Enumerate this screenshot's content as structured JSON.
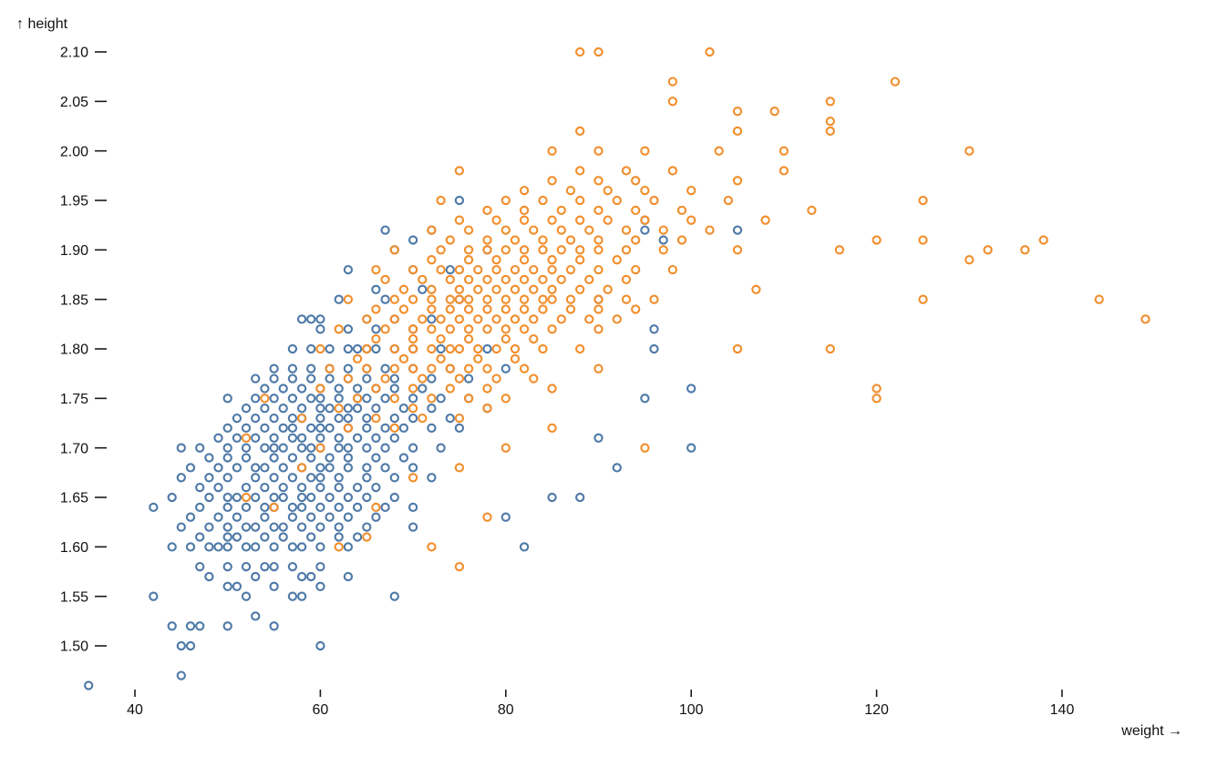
{
  "chart_data": {
    "type": "scatter",
    "title": "",
    "xlabel": "weight",
    "ylabel": "height",
    "x_axis_title": "weight →",
    "y_axis_title": "↑ height",
    "x_domain": [
      35,
      150
    ],
    "y_domain": [
      1.46,
      2.1
    ],
    "x_ticks": [
      40,
      60,
      80,
      100,
      120,
      140
    ],
    "y_ticks": [
      "1.50",
      "1.55",
      "1.60",
      "1.65",
      "1.70",
      "1.75",
      "1.80",
      "1.85",
      "1.90",
      "1.95",
      "2.00",
      "2.05",
      "2.10"
    ],
    "grid": false,
    "legend_position": "none",
    "background_color": "#ffffff",
    "text_color": "#111111",
    "marker": {
      "shape": "open-circle",
      "radius": 4.1,
      "stroke_width": 2.1
    },
    "series": [
      {
        "name": "blue",
        "color": "#4e79a7",
        "rows": [
          {
            "h": 1.46,
            "w": [
              35
            ]
          },
          {
            "h": 1.47,
            "w": [
              45
            ]
          },
          {
            "h": 1.5,
            "w": [
              45,
              46,
              60
            ]
          },
          {
            "h": 1.52,
            "w": [
              44,
              46,
              47,
              50,
              55
            ]
          },
          {
            "h": 1.53,
            "w": [
              53
            ]
          },
          {
            "h": 1.55,
            "w": [
              42,
              52,
              57,
              58,
              68
            ]
          },
          {
            "h": 1.56,
            "w": [
              50,
              51,
              55,
              60
            ]
          },
          {
            "h": 1.57,
            "w": [
              48,
              53,
              58,
              59,
              63
            ]
          },
          {
            "h": 1.58,
            "w": [
              47,
              50,
              52,
              54,
              55,
              57,
              60
            ]
          },
          {
            "h": 1.6,
            "w": [
              44,
              46,
              48,
              49,
              50,
              52,
              53,
              55,
              57,
              58,
              60,
              63,
              82
            ]
          },
          {
            "h": 1.61,
            "w": [
              47,
              50,
              51,
              54,
              56,
              59,
              62,
              64
            ]
          },
          {
            "h": 1.62,
            "w": [
              45,
              48,
              50,
              52,
              53,
              55,
              56,
              58,
              60,
              62,
              65,
              70
            ]
          },
          {
            "h": 1.63,
            "w": [
              46,
              49,
              51,
              54,
              57,
              59,
              61,
              63,
              66,
              80
            ]
          },
          {
            "h": 1.64,
            "w": [
              42,
              47,
              50,
              52,
              54,
              55,
              57,
              58,
              60,
              62,
              64,
              67,
              70
            ]
          },
          {
            "h": 1.65,
            "w": [
              44,
              48,
              50,
              51,
              53,
              55,
              56,
              58,
              59,
              61,
              63,
              65,
              68,
              85,
              88
            ]
          },
          {
            "h": 1.66,
            "w": [
              47,
              49,
              52,
              54,
              56,
              58,
              60,
              62,
              64,
              66
            ]
          },
          {
            "h": 1.67,
            "w": [
              45,
              48,
              50,
              53,
              55,
              57,
              59,
              60,
              62,
              65,
              68,
              72
            ]
          },
          {
            "h": 1.68,
            "w": [
              46,
              49,
              51,
              53,
              54,
              56,
              58,
              60,
              61,
              63,
              65,
              67,
              70,
              92
            ]
          },
          {
            "h": 1.69,
            "w": [
              48,
              50,
              52,
              55,
              57,
              59,
              61,
              63,
              66,
              69
            ]
          },
          {
            "h": 1.7,
            "w": [
              45,
              47,
              50,
              52,
              54,
              55,
              56,
              58,
              59,
              60,
              62,
              63,
              65,
              67,
              70,
              73,
              100
            ]
          },
          {
            "h": 1.71,
            "w": [
              49,
              51,
              53,
              55,
              57,
              58,
              60,
              62,
              64,
              66,
              68,
              90
            ]
          },
          {
            "h": 1.72,
            "w": [
              50,
              52,
              54,
              56,
              57,
              59,
              60,
              61,
              63,
              65,
              67,
              69,
              72,
              75
            ]
          },
          {
            "h": 1.73,
            "w": [
              51,
              53,
              55,
              57,
              58,
              60,
              62,
              63,
              65,
              68,
              70,
              74
            ]
          },
          {
            "h": 1.74,
            "w": [
              52,
              54,
              56,
              58,
              60,
              61,
              63,
              64,
              66,
              69,
              72,
              78
            ]
          },
          {
            "h": 1.75,
            "w": [
              50,
              53,
              55,
              57,
              59,
              60,
              62,
              64,
              65,
              67,
              70,
              73,
              76,
              95
            ]
          },
          {
            "h": 1.76,
            "w": [
              54,
              56,
              58,
              60,
              62,
              64,
              66,
              68,
              71,
              100
            ]
          },
          {
            "h": 1.77,
            "w": [
              53,
              55,
              57,
              59,
              61,
              63,
              65,
              68,
              72,
              76
            ]
          },
          {
            "h": 1.78,
            "w": [
              55,
              57,
              59,
              61,
              63,
              65,
              67,
              70,
              74,
              80
            ]
          },
          {
            "h": 1.8,
            "w": [
              57,
              59,
              61,
              63,
              64,
              65,
              66,
              68,
              70,
              73,
              78,
              96
            ]
          },
          {
            "h": 1.82,
            "w": [
              60,
              63,
              66,
              70,
              96
            ]
          },
          {
            "h": 1.83,
            "w": [
              58,
              59,
              60,
              65,
              68,
              72
            ]
          },
          {
            "h": 1.85,
            "w": [
              62,
              67,
              75,
              90
            ]
          },
          {
            "h": 1.86,
            "w": [
              66,
              71
            ]
          },
          {
            "h": 1.88,
            "w": [
              63,
              70,
              74
            ]
          },
          {
            "h": 1.9,
            "w": [
              68,
              78
            ]
          },
          {
            "h": 1.91,
            "w": [
              70,
              97
            ]
          },
          {
            "h": 1.92,
            "w": [
              67,
              72,
              95,
              105
            ]
          },
          {
            "h": 1.93,
            "w": [
              95
            ]
          },
          {
            "h": 1.95,
            "w": [
              75
            ]
          }
        ]
      },
      {
        "name": "orange",
        "color": "#f28e2c",
        "rows": [
          {
            "h": 1.58,
            "w": [
              75
            ]
          },
          {
            "h": 1.6,
            "w": [
              62,
              72
            ]
          },
          {
            "h": 1.61,
            "w": [
              65
            ]
          },
          {
            "h": 1.63,
            "w": [
              78
            ]
          },
          {
            "h": 1.64,
            "w": [
              55,
              66
            ]
          },
          {
            "h": 1.65,
            "w": [
              52
            ]
          },
          {
            "h": 1.67,
            "w": [
              70
            ]
          },
          {
            "h": 1.68,
            "w": [
              58,
              75
            ]
          },
          {
            "h": 1.7,
            "w": [
              60,
              80,
              95
            ]
          },
          {
            "h": 1.71,
            "w": [
              52
            ]
          },
          {
            "h": 1.72,
            "w": [
              63,
              68,
              85
            ]
          },
          {
            "h": 1.73,
            "w": [
              58,
              66,
              71,
              75
            ]
          },
          {
            "h": 1.74,
            "w": [
              62,
              70,
              78
            ]
          },
          {
            "h": 1.75,
            "w": [
              54,
              64,
              68,
              72,
              76,
              80,
              120
            ]
          },
          {
            "h": 1.76,
            "w": [
              60,
              66,
              70,
              74,
              78,
              85,
              120
            ]
          },
          {
            "h": 1.77,
            "w": [
              63,
              67,
              71,
              75,
              79,
              83
            ]
          },
          {
            "h": 1.78,
            "w": [
              61,
              65,
              68,
              70,
              72,
              74,
              76,
              78,
              82,
              90
            ]
          },
          {
            "h": 1.79,
            "w": [
              64,
              69,
              73,
              77,
              81
            ]
          },
          {
            "h": 1.8,
            "w": [
              60,
              65,
              68,
              70,
              72,
              74,
              75,
              77,
              79,
              81,
              84,
              88,
              105,
              115
            ]
          },
          {
            "h": 1.81,
            "w": [
              66,
              70,
              73,
              76,
              80,
              83
            ]
          },
          {
            "h": 1.82,
            "w": [
              62,
              67,
              70,
              72,
              74,
              76,
              78,
              80,
              82,
              85,
              90
            ]
          },
          {
            "h": 1.83,
            "w": [
              65,
              68,
              71,
              73,
              75,
              77,
              79,
              81,
              83,
              86,
              89,
              92,
              149
            ]
          },
          {
            "h": 1.84,
            "w": [
              66,
              69,
              72,
              74,
              76,
              78,
              80,
              82,
              84,
              87,
              90,
              94
            ]
          },
          {
            "h": 1.85,
            "w": [
              63,
              68,
              70,
              72,
              74,
              75,
              76,
              78,
              80,
              82,
              84,
              85,
              87,
              90,
              93,
              96,
              125,
              144
            ]
          },
          {
            "h": 1.86,
            "w": [
              69,
              72,
              75,
              77,
              79,
              81,
              83,
              85,
              88,
              91,
              107
            ]
          },
          {
            "h": 1.87,
            "w": [
              67,
              71,
              74,
              76,
              78,
              80,
              82,
              84,
              86,
              89,
              93
            ]
          },
          {
            "h": 1.88,
            "w": [
              66,
              70,
              73,
              75,
              77,
              79,
              81,
              83,
              85,
              87,
              90,
              94,
              98
            ]
          },
          {
            "h": 1.89,
            "w": [
              72,
              76,
              79,
              82,
              85,
              88,
              92,
              130
            ]
          },
          {
            "h": 1.9,
            "w": [
              68,
              73,
              76,
              78,
              80,
              82,
              84,
              86,
              88,
              90,
              93,
              97,
              105,
              116,
              132,
              136
            ]
          },
          {
            "h": 1.91,
            "w": [
              74,
              78,
              81,
              84,
              87,
              90,
              94,
              99,
              120,
              125,
              138
            ]
          },
          {
            "h": 1.92,
            "w": [
              72,
              76,
              80,
              83,
              86,
              89,
              93,
              97,
              102
            ]
          },
          {
            "h": 1.93,
            "w": [
              75,
              79,
              82,
              85,
              88,
              91,
              95,
              100,
              108
            ]
          },
          {
            "h": 1.94,
            "w": [
              78,
              82,
              86,
              90,
              94,
              99,
              113
            ]
          },
          {
            "h": 1.95,
            "w": [
              73,
              80,
              84,
              88,
              92,
              96,
              104,
              125
            ]
          },
          {
            "h": 1.96,
            "w": [
              82,
              87,
              91,
              95,
              100
            ]
          },
          {
            "h": 1.97,
            "w": [
              85,
              90,
              94,
              105
            ]
          },
          {
            "h": 1.98,
            "w": [
              75,
              88,
              93,
              98,
              110
            ]
          },
          {
            "h": 2.0,
            "w": [
              85,
              90,
              95,
              103,
              110,
              130
            ]
          },
          {
            "h": 2.02,
            "w": [
              88,
              105,
              115
            ]
          },
          {
            "h": 2.03,
            "w": [
              115
            ]
          },
          {
            "h": 2.04,
            "w": [
              105,
              109
            ]
          },
          {
            "h": 2.05,
            "w": [
              98,
              115
            ]
          },
          {
            "h": 2.07,
            "w": [
              98,
              122
            ]
          },
          {
            "h": 2.1,
            "w": [
              88,
              90,
              102
            ]
          }
        ]
      }
    ]
  }
}
